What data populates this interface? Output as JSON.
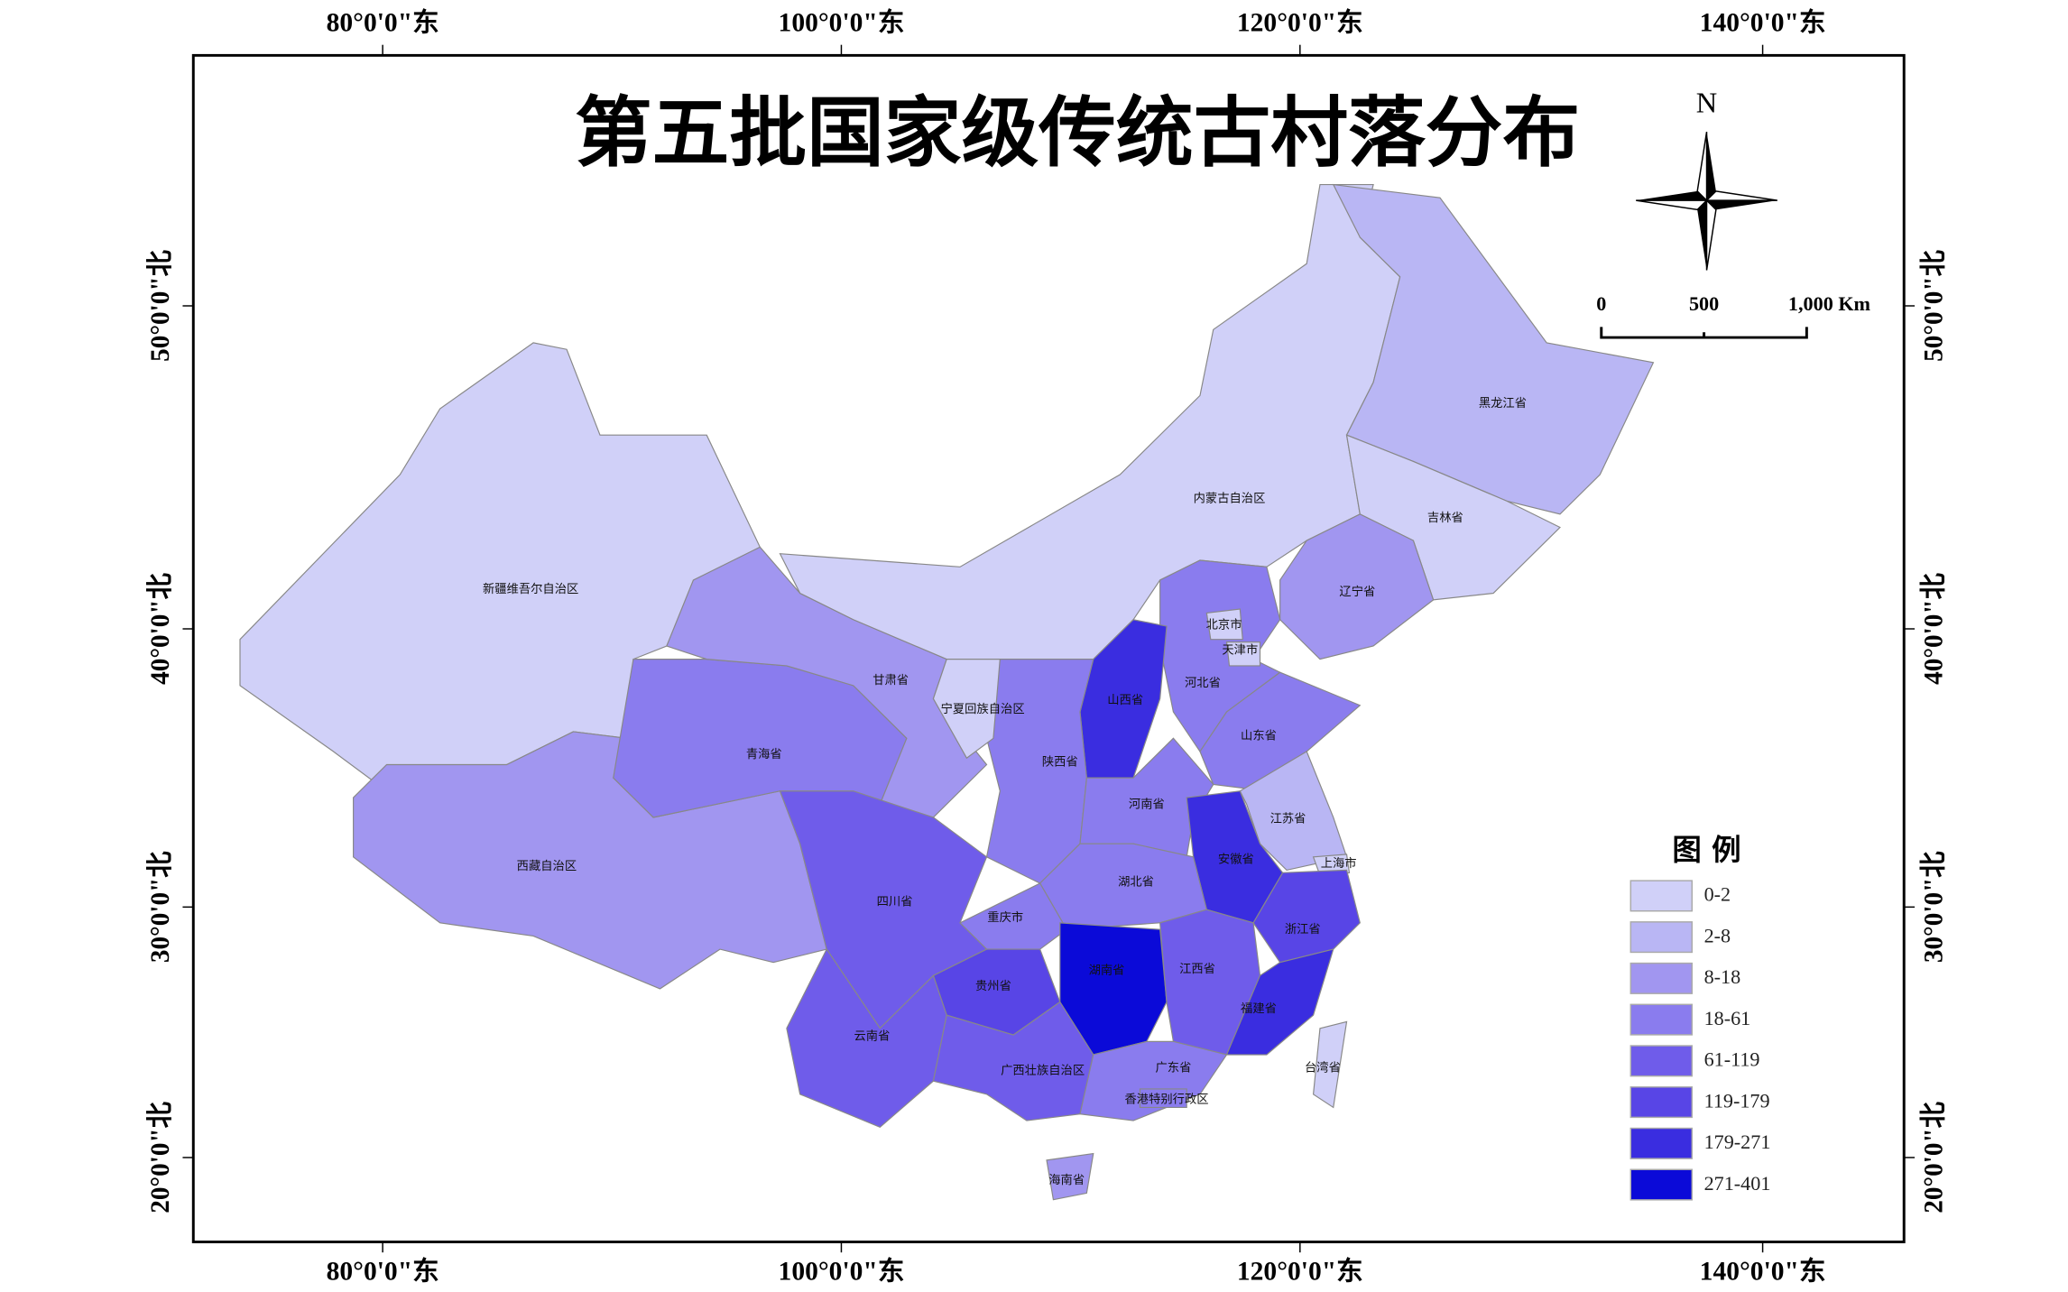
{
  "title": "第五批国家级传统古村落分布",
  "graticule": {
    "top": [
      "80°0'0\"东",
      "100°0'0\"东",
      "120°0'0\"东",
      "140°0'0\"东"
    ],
    "bottom": [
      "80°0'0\"东",
      "100°0'0\"东",
      "120°0'0\"东",
      "140°0'0\"东"
    ],
    "left": [
      "50°0'0\"北",
      "40°0'0\"北",
      "30°0'0\"北",
      "20°0'0\"北"
    ],
    "right": [
      "50°0'0\"北",
      "40°0'0\"北",
      "30°0'0\"北",
      "20°0'0\"北"
    ]
  },
  "compass": "N",
  "scale_bar": [
    "0",
    "500",
    "1,000 Km"
  ],
  "legend": {
    "title": "图  例",
    "classes": [
      {
        "label": "0-2",
        "color": "#d0d0f8"
      },
      {
        "label": "2-8",
        "color": "#b9b6f4"
      },
      {
        "label": "8-18",
        "color": "#a196f0"
      },
      {
        "label": "18-61",
        "color": "#8a7cee"
      },
      {
        "label": "61-119",
        "color": "#6f5cea"
      },
      {
        "label": "119-179",
        "color": "#5845e6"
      },
      {
        "label": "179-271",
        "color": "#3a2de0"
      },
      {
        "label": "271-401",
        "color": "#0b0ad8"
      }
    ]
  },
  "provinces": [
    {
      "name": "新疆维吾尔自治区",
      "class": 0
    },
    {
      "name": "西藏自治区",
      "class": 2
    },
    {
      "name": "青海省",
      "class": 3
    },
    {
      "name": "甘肃省",
      "class": 2
    },
    {
      "name": "内蒙古自治区",
      "class": 0
    },
    {
      "name": "黑龙江省",
      "class": 1
    },
    {
      "name": "吉林省",
      "class": 0
    },
    {
      "name": "辽宁省",
      "class": 2
    },
    {
      "name": "河北省",
      "class": 3
    },
    {
      "name": "北京市",
      "class": 0
    },
    {
      "name": "天津市",
      "class": 0
    },
    {
      "name": "山西省",
      "class": 6
    },
    {
      "name": "陕西省",
      "class": 3
    },
    {
      "name": "宁夏回族自治区",
      "class": 0
    },
    {
      "name": "山东省",
      "class": 3
    },
    {
      "name": "河南省",
      "class": 3
    },
    {
      "name": "江苏省",
      "class": 1
    },
    {
      "name": "安徽省",
      "class": 6
    },
    {
      "name": "上海市",
      "class": 0
    },
    {
      "name": "浙江省",
      "class": 5
    },
    {
      "name": "湖北省",
      "class": 3
    },
    {
      "name": "重庆市",
      "class": 3
    },
    {
      "name": "四川省",
      "class": 4
    },
    {
      "name": "贵州省",
      "class": 5
    },
    {
      "name": "湖南省",
      "class": 7
    },
    {
      "name": "江西省",
      "class": 4
    },
    {
      "name": "福建省",
      "class": 6
    },
    {
      "name": "云南省",
      "class": 4
    },
    {
      "name": "广西壮族自治区",
      "class": 4
    },
    {
      "name": "广东省",
      "class": 3
    },
    {
      "name": "香港特别行政区",
      "class": 3
    },
    {
      "name": "海南省",
      "class": 2
    },
    {
      "name": "台湾省",
      "class": 0
    }
  ]
}
